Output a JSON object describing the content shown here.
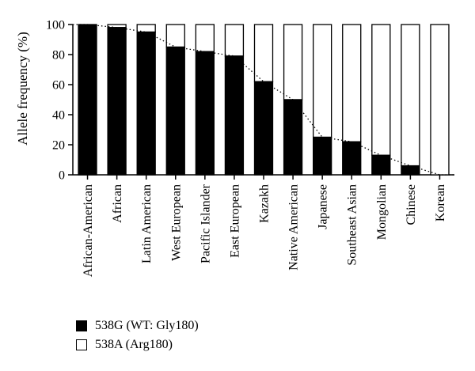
{
  "chart_data": {
    "type": "bar",
    "stacked": true,
    "categories": [
      "African-American",
      "African",
      "Latin American",
      "West European",
      "Pacific Islander",
      "East European",
      "Kazakh",
      "Native American",
      "Japanese",
      "Southeast Asian",
      "Mongolian",
      "Chinese",
      "Korean"
    ],
    "series": [
      {
        "name": "538G (WT: Gly180)",
        "color": "#000000",
        "values": [
          100,
          98,
          95,
          85,
          82,
          79,
          62,
          50,
          25,
          22,
          13,
          6,
          0
        ]
      },
      {
        "name": "538A (Arg180)",
        "color": "#ffffff",
        "values": [
          0,
          2,
          5,
          15,
          18,
          21,
          38,
          50,
          75,
          78,
          87,
          94,
          100
        ]
      }
    ],
    "ylabel": "Allele frequency (%)",
    "xlabel": "",
    "ylim": [
      0,
      100
    ],
    "yticks": [
      0,
      20,
      40,
      60,
      80,
      100
    ],
    "trend_line": "dotted line connecting tops of 538G bars",
    "legend_position": "bottom-left"
  }
}
